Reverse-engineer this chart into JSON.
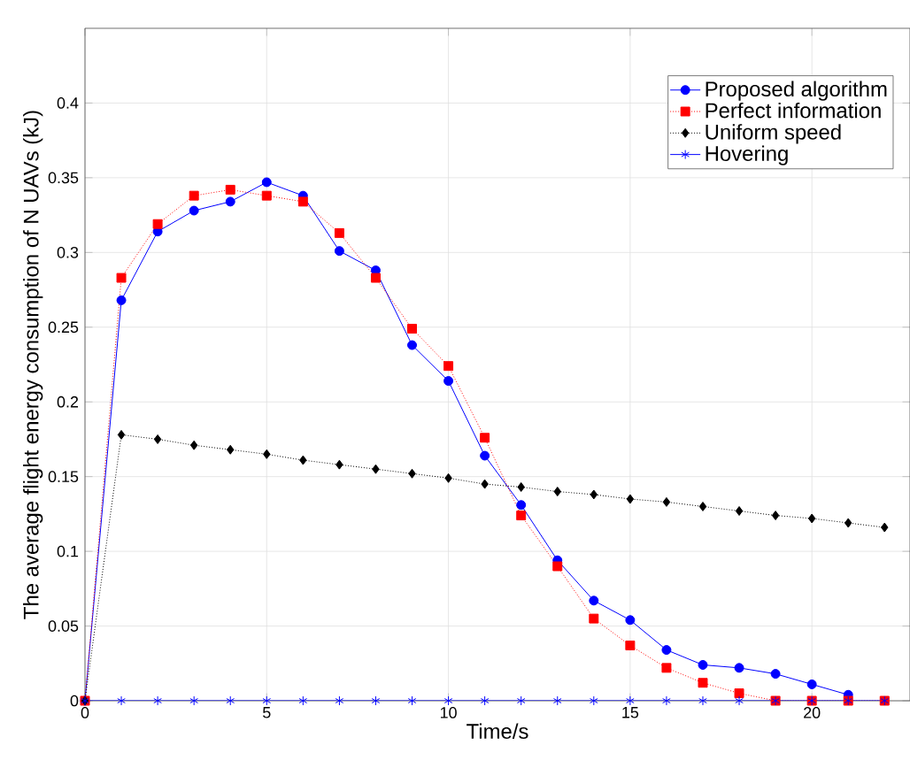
{
  "chart_data": {
    "type": "line",
    "xlabel": "Time/s",
    "ylabel": "The average flight energy consumption of N UAVs (kJ)",
    "x": [
      0,
      1,
      2,
      3,
      4,
      5,
      6,
      7,
      8,
      9,
      10,
      11,
      12,
      13,
      14,
      15,
      16,
      17,
      18,
      19,
      20,
      21,
      22
    ],
    "series": [
      {
        "name": "Proposed algorithm",
        "color": "#0000ff",
        "marker": "circle",
        "line_style": "solid",
        "values": [
          0,
          0.268,
          0.314,
          0.328,
          0.334,
          0.347,
          0.338,
          0.301,
          0.288,
          0.238,
          0.214,
          0.164,
          0.131,
          0.094,
          0.067,
          0.054,
          0.034,
          0.024,
          0.022,
          0.018,
          0.011,
          0.004,
          null
        ]
      },
      {
        "name": "Perfect information",
        "color": "#ff0000",
        "marker": "square",
        "line_style": "dotted",
        "values": [
          0,
          0.283,
          0.319,
          0.338,
          0.342,
          0.338,
          0.334,
          0.313,
          0.283,
          0.249,
          0.224,
          0.176,
          0.124,
          0.09,
          0.055,
          0.037,
          0.022,
          0.012,
          0.005,
          0,
          0,
          0,
          0
        ]
      },
      {
        "name": "Uniform speed",
        "color": "#000000",
        "marker": "diamond",
        "line_style": "dotted",
        "values": [
          0,
          0.178,
          0.175,
          0.171,
          0.168,
          0.165,
          0.161,
          0.158,
          0.155,
          0.152,
          0.149,
          0.145,
          0.143,
          0.14,
          0.138,
          0.135,
          0.133,
          0.13,
          0.127,
          0.124,
          0.122,
          0.119,
          0.116
        ]
      },
      {
        "name": "Hovering",
        "color": "#0000ff",
        "marker": "cross",
        "line_style": "solid",
        "values": [
          0,
          0,
          0,
          0,
          0,
          0,
          0,
          0,
          0,
          0,
          0,
          0,
          0,
          0,
          0,
          0,
          0,
          0,
          0,
          0,
          0,
          0,
          0
        ]
      }
    ],
    "xlim": [
      0,
      22.7
    ],
    "ylim": [
      0,
      0.45
    ],
    "xticks": [
      0,
      5,
      10,
      15,
      20
    ],
    "yticks": [
      0,
      0.05,
      0.1,
      0.15,
      0.2,
      0.25,
      0.3,
      0.35,
      0.4
    ],
    "grid": true,
    "legend": "top right"
  }
}
